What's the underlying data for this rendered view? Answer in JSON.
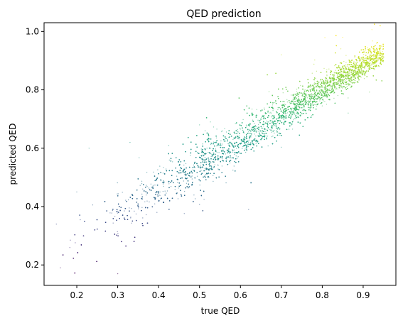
{
  "chart_data": {
    "type": "scatter",
    "title": "QED prediction",
    "xlabel": "true QED",
    "ylabel": "predicted QED",
    "xlim": [
      0.12,
      0.98
    ],
    "ylim": [
      0.13,
      1.03
    ],
    "xticks": [
      0.2,
      0.3,
      0.4,
      0.5,
      0.6,
      0.7,
      0.8,
      0.9
    ],
    "xtick_labels": [
      "0.2",
      "0.3",
      "0.4",
      "0.5",
      "0.6",
      "0.7",
      "0.8",
      "0.9"
    ],
    "yticks": [
      0.2,
      0.4,
      0.6,
      0.8,
      1.0
    ],
    "ytick_labels": [
      "0.2",
      "0.4",
      "0.6",
      "0.8",
      "1.0"
    ],
    "grid": false,
    "legend": "none",
    "colormap": "viridis",
    "marker_alpha": 0.55,
    "density_profile": [
      {
        "x": 0.15,
        "weight": 0.05
      },
      {
        "x": 0.25,
        "weight": 0.3
      },
      {
        "x": 0.35,
        "weight": 0.9
      },
      {
        "x": 0.45,
        "weight": 1.7
      },
      {
        "x": 0.55,
        "weight": 2.6
      },
      {
        "x": 0.65,
        "weight": 3.4
      },
      {
        "x": 0.75,
        "weight": 4.3
      },
      {
        "x": 0.85,
        "weight": 5.0
      },
      {
        "x": 0.93,
        "weight": 4.6
      }
    ],
    "trend": {
      "x": [
        0.15,
        0.95
      ],
      "y": [
        0.24,
        0.93
      ]
    },
    "spread": {
      "x": [
        0.15,
        0.95
      ],
      "sd": [
        0.055,
        0.02
      ]
    },
    "x_range_points": [
      0.15,
      0.95
    ],
    "sample_points": [
      {
        "x": 0.16,
        "y": 0.19
      },
      {
        "x": 0.15,
        "y": 0.34
      },
      {
        "x": 0.2,
        "y": 0.45
      },
      {
        "x": 0.3,
        "y": 0.17
      },
      {
        "x": 0.23,
        "y": 0.6
      },
      {
        "x": 0.33,
        "y": 0.62
      },
      {
        "x": 0.5,
        "y": 0.68
      },
      {
        "x": 0.62,
        "y": 0.39
      },
      {
        "x": 0.7,
        "y": 0.92
      },
      {
        "x": 0.85,
        "y": 0.98
      },
      {
        "x": 0.94,
        "y": 0.95
      },
      {
        "x": 0.94,
        "y": 0.88
      }
    ]
  }
}
